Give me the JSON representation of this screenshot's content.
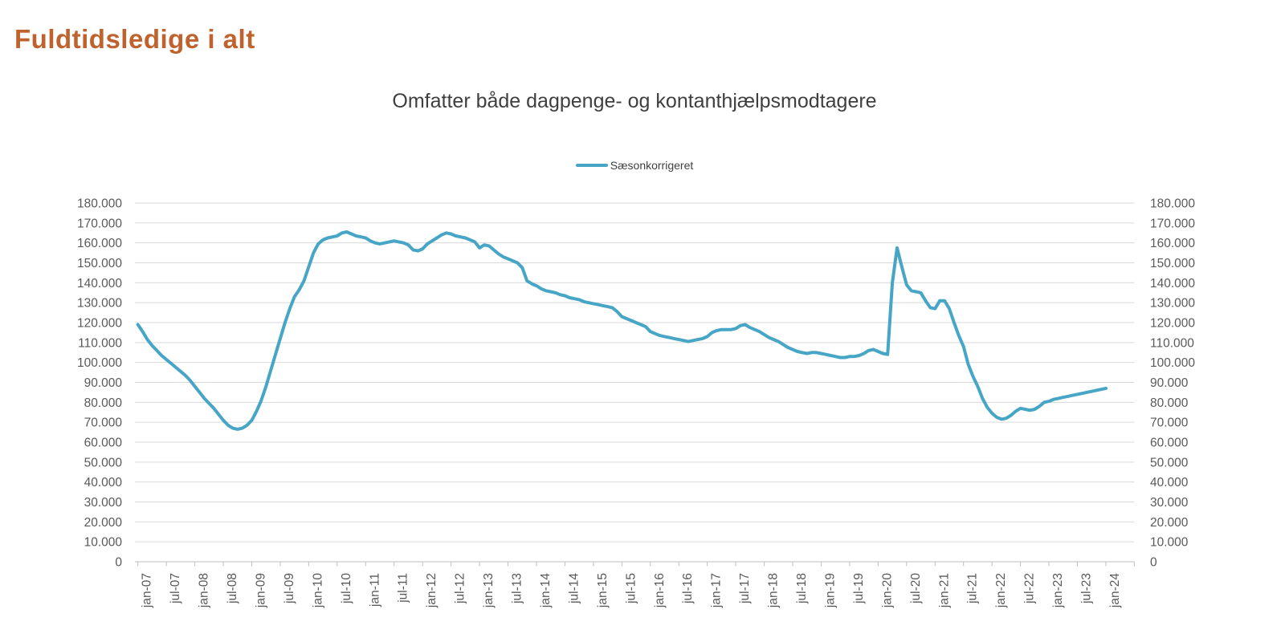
{
  "header": {
    "title": "Fuldtidsledige i alt",
    "title_color": "#C0622D"
  },
  "chart": {
    "subtitle": "Omfatter både dagpenge- og kontanthjælpsmodtagere",
    "legend": {
      "label": "Sæsonkorrigeret"
    },
    "colors": {
      "line": "#47A5C6",
      "grid": "#D9D9D9",
      "axis": "#BFBFBF",
      "tick_label": "#595959"
    }
  },
  "chart_data": {
    "type": "line",
    "title": "Omfatter både dagpenge- og kontanthjælpsmodtagere",
    "legend_position": "top-center",
    "grid": "horizontal",
    "ylim": [
      0,
      180000
    ],
    "y_step": 10000,
    "y_tick_labels": [
      "0",
      "10.000",
      "20.000",
      "30.000",
      "40.000",
      "50.000",
      "60.000",
      "70.000",
      "80.000",
      "90.000",
      "100.000",
      "110.000",
      "120.000",
      "130.000",
      "140.000",
      "150.000",
      "160.000",
      "170.000",
      "180.000"
    ],
    "y_axis_sides": [
      "left",
      "right"
    ],
    "x_tick_labels": [
      "jan-07",
      "jul-07",
      "jan-08",
      "jul-08",
      "jan-09",
      "jul-09",
      "jan-10",
      "jul-10",
      "jan-11",
      "jul-11",
      "jan-12",
      "jul-12",
      "jan-13",
      "jul-13",
      "jan-14",
      "jul-14",
      "jan-15",
      "jul-15",
      "jan-16",
      "jul-16",
      "jan-17",
      "jul-17",
      "jan-18",
      "jul-18",
      "jan-19",
      "jul-19",
      "jan-20",
      "jul-20",
      "jan-21",
      "jul-21",
      "jan-22",
      "jul-22",
      "jan-23",
      "jul-23",
      "jan-24"
    ],
    "x_frequency": "monthly",
    "x_start": "jan-07",
    "x_end": "jan-24",
    "series": [
      {
        "name": "Sæsonkorrigeret",
        "color": "#47A5C6",
        "values": [
          119000,
          115500,
          111500,
          108500,
          106000,
          103500,
          101500,
          99500,
          97500,
          95500,
          93500,
          91000,
          88000,
          85000,
          82000,
          79500,
          77000,
          74000,
          71000,
          68500,
          67000,
          66500,
          67000,
          68500,
          71000,
          75500,
          81000,
          88000,
          96000,
          104000,
          112000,
          120000,
          127000,
          133000,
          136500,
          141000,
          148000,
          155000,
          159500,
          161500,
          162500,
          163000,
          163500,
          165000,
          165500,
          164500,
          163500,
          163000,
          162500,
          161000,
          160000,
          159500,
          160000,
          160500,
          161000,
          160500,
          160000,
          159000,
          156500,
          156000,
          157000,
          159500,
          161000,
          162500,
          164000,
          165000,
          164500,
          163500,
          163000,
          162500,
          161500,
          160500,
          157500,
          159000,
          158500,
          156500,
          154500,
          153000,
          152000,
          151000,
          150000,
          147500,
          141000,
          139500,
          138500,
          137000,
          136000,
          135500,
          135000,
          134000,
          133500,
          132500,
          132000,
          131500,
          130500,
          130000,
          129500,
          129000,
          128500,
          128000,
          127500,
          125500,
          123000,
          122000,
          121000,
          120000,
          119000,
          118000,
          115500,
          114500,
          113500,
          113000,
          112500,
          112000,
          111500,
          111000,
          110500,
          111000,
          111500,
          112000,
          113000,
          115000,
          116000,
          116500,
          116500,
          116500,
          117000,
          118500,
          119000,
          117500,
          116500,
          115500,
          114000,
          112500,
          111500,
          110500,
          109000,
          107500,
          106500,
          105500,
          105000,
          104500,
          105000,
          105000,
          104500,
          104000,
          103500,
          103000,
          102500,
          102500,
          103000,
          103000,
          103500,
          104500,
          106000,
          106500,
          105500,
          104500,
          104000,
          140000,
          157500,
          148000,
          139000,
          136000,
          135500,
          135000,
          131000,
          127500,
          127000,
          131000,
          131000,
          127000,
          120000,
          113500,
          108000,
          99000,
          93000,
          88000,
          82000,
          77500,
          74500,
          72500,
          71500,
          72000,
          73500,
          75500,
          77000,
          76500,
          76000,
          76500,
          78000,
          80000,
          80500,
          81500,
          82000,
          82500,
          83000,
          83500,
          84000,
          84500,
          85000,
          85500,
          86000,
          86500,
          87000
        ]
      }
    ]
  }
}
